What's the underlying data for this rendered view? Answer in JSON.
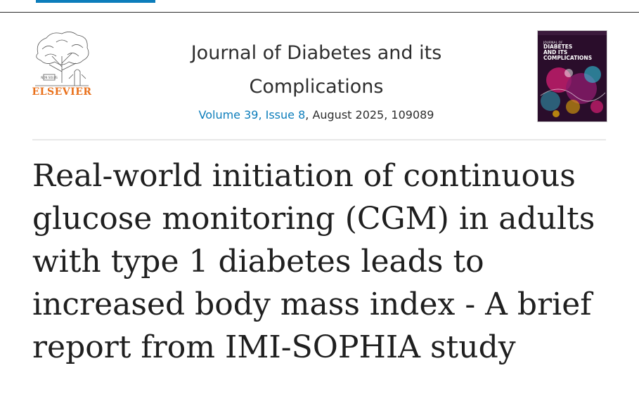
{
  "publisher": {
    "name": "ELSEVIER",
    "logo_icon": "tree-and-scholar-icon",
    "logo_motto": "NON SOLUS"
  },
  "journal": {
    "title": "Journal of Diabetes and its Complications",
    "volume_label": "Volume 39, Issue 8",
    "date_and_number": ", August 2025, 109089"
  },
  "cover": {
    "top_line": "JOURNAL OF",
    "title_line1": "DIABETES",
    "title_line2": "AND ITS",
    "title_line3": "COMPLICATIONS",
    "colors": {
      "background": "#2a0d2b",
      "accent1": "#d61f74",
      "accent2": "#2fc4d8",
      "accent3": "#f2b705"
    }
  },
  "article": {
    "title": "Real-world initiation of continuous glucose monitoring (CGM) in adults with type 1 diabetes leads to increased body mass index - A brief report from IMI-SOPHIA study"
  },
  "colors": {
    "link": "#0c7dbb",
    "publisher_orange": "#e9711c",
    "text": "#1f1f1f"
  }
}
